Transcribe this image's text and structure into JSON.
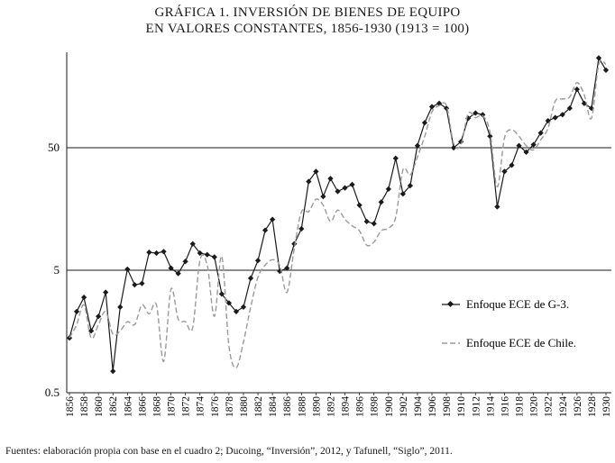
{
  "title": {
    "line1": "GRÁFICA 1. INVERSIÓN DE BIENES DE EQUIPO",
    "line2": "EN VALORES CONSTANTES, 1856-1930 (1913 = 100)"
  },
  "source": "Fuentes: elaboración propia con base en el cuadro 2; Ducoing, “Inversión”, 2012, y Tafunell, “Siglo”, 2011.",
  "chart_data": {
    "type": "line",
    "title": "GRÁFICA 1. INVERSIÓN DE BIENES DE EQUIPO EN VALORES CONSTANTES, 1856-1930 (1913 = 100)",
    "xlabel": "",
    "ylabel": "",
    "y_scale": "log",
    "ylim": [
      0.5,
      300
    ],
    "xlim": [
      1856,
      1930
    ],
    "grid": "horizontal lines at 5 and 50",
    "legend_position": "right",
    "y_ticks": [
      "50",
      "5",
      "0.5"
    ],
    "x_ticks": [
      "1856",
      "1858",
      "1860",
      "1862",
      "1864",
      "1866",
      "1868",
      "1870",
      "1872",
      "1874",
      "1876",
      "1878",
      "1880",
      "1882",
      "1884",
      "1886",
      "1888",
      "1890",
      "1892",
      "1894",
      "1896",
      "1898",
      "1900",
      "1902",
      "1904",
      "1906",
      "1908",
      "1910",
      "1912",
      "1914",
      "1916",
      "1918",
      "1920",
      "1922",
      "1924",
      "1926",
      "1928",
      "1930"
    ],
    "x": [
      1856,
      1857,
      1858,
      1859,
      1860,
      1861,
      1862,
      1863,
      1864,
      1865,
      1866,
      1867,
      1868,
      1869,
      1870,
      1871,
      1872,
      1873,
      1874,
      1875,
      1876,
      1877,
      1878,
      1879,
      1880,
      1881,
      1882,
      1883,
      1884,
      1885,
      1886,
      1887,
      1888,
      1889,
      1890,
      1891,
      1892,
      1893,
      1894,
      1895,
      1896,
      1897,
      1898,
      1899,
      1900,
      1901,
      1902,
      1903,
      1904,
      1905,
      1906,
      1907,
      1908,
      1909,
      1910,
      1911,
      1912,
      1913,
      1914,
      1915,
      1916,
      1917,
      1918,
      1919,
      1920,
      1921,
      1922,
      1923,
      1924,
      1925,
      1926,
      1927,
      1928,
      1929,
      1930
    ],
    "series": [
      {
        "name": "Enfoque ECE de G-3.",
        "color": "#1a1a1a",
        "style": "solid-diamond",
        "values": [
          1.4,
          2.3,
          3.0,
          1.6,
          2.1,
          3.3,
          0.75,
          2.5,
          5.1,
          3.8,
          3.9,
          7.0,
          6.9,
          7.1,
          5.2,
          4.7,
          5.9,
          8.2,
          6.9,
          6.7,
          6.4,
          3.2,
          2.7,
          2.3,
          2.5,
          4.3,
          6.0,
          10.6,
          13.0,
          4.9,
          5.2,
          8.2,
          10.9,
          26.5,
          32.0,
          20.0,
          28.0,
          22.0,
          23.5,
          25.0,
          17.0,
          12.5,
          12.0,
          18.0,
          23.0,
          41.0,
          21.0,
          24.5,
          52.0,
          80.0,
          108.0,
          115.0,
          105.0,
          50.0,
          56.0,
          87.0,
          96.0,
          93.0,
          62.0,
          16.5,
          32.0,
          36.0,
          52.0,
          46.0,
          53.0,
          66.0,
          83.0,
          88.0,
          93.0,
          105.0,
          150.0,
          115.0,
          105.0,
          270.0,
          215.0
        ]
      },
      {
        "name": "Enfoque ECE de Chile.",
        "color": "#9a9a9a",
        "style": "dashed",
        "values": [
          1.4,
          1.8,
          2.6,
          1.4,
          1.8,
          2.3,
          1.5,
          1.6,
          1.9,
          1.8,
          2.6,
          2.2,
          2.6,
          0.9,
          3.5,
          2.0,
          1.9,
          1.7,
          6.0,
          5.5,
          2.1,
          6.5,
          1.2,
          0.8,
          1.3,
          2.5,
          4.4,
          5.5,
          6.1,
          5.5,
          3.3,
          7.5,
          15.0,
          15.0,
          19.0,
          17.0,
          12.5,
          15.5,
          13.0,
          11.5,
          10.5,
          8.0,
          8.5,
          10.5,
          11.0,
          13.5,
          33.0,
          30.0,
          42.0,
          62.0,
          98.0,
          110.0,
          110.0,
          54.0,
          53.0,
          95.0,
          88.0,
          91.0,
          67.0,
          24.0,
          60.0,
          70.0,
          62.0,
          52.0,
          48.0,
          58.0,
          72.0,
          120.0,
          125.0,
          130.0,
          170.0,
          135.0,
          87.0,
          240.0,
          240.0
        ]
      }
    ]
  },
  "legend": {
    "g3_label": "Enfoque ECE de G-3.",
    "chile_label": "Enfoque ECE de Chile."
  }
}
